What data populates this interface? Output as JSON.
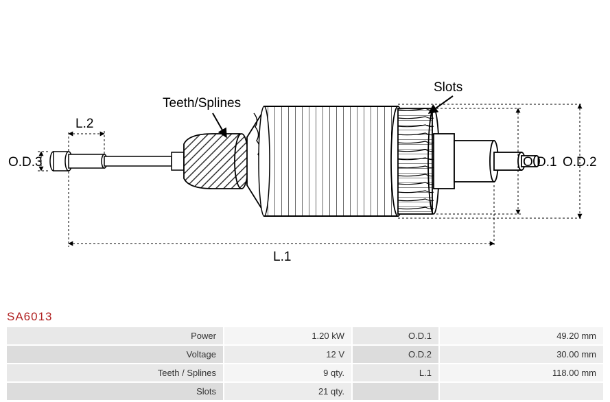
{
  "part_number": "SA6013",
  "part_number_color": "#b02020",
  "diagram": {
    "labels": {
      "slots": "Slots",
      "teeth": "Teeth/Splines",
      "L2": "L.2",
      "OD3": "O.D.3",
      "OD1": "O.D.1",
      "OD2": "O.D.2",
      "L1": "L.1"
    },
    "stroke_color": "#000000",
    "fill_color": "#ffffff",
    "hatch_color": "#333333",
    "dimension_dash": "3,3"
  },
  "specs": {
    "rows": [
      {
        "label1": "Power",
        "value1": "1.20 kW",
        "label2": "O.D.1",
        "value2": "49.20 mm"
      },
      {
        "label1": "Voltage",
        "value1": "12 V",
        "label2": "O.D.2",
        "value2": "30.00 mm"
      },
      {
        "label1": "Teeth / Splines",
        "value1": "9 qty.",
        "label2": "L.1",
        "value2": "118.00 mm"
      },
      {
        "label1": "Slots",
        "value1": "21 qty.",
        "label2": "",
        "value2": ""
      }
    ],
    "odd_label_bg": "#e8e8e8",
    "odd_value_bg": "#f5f5f5",
    "even_label_bg": "#dcdcdc",
    "even_value_bg": "#ececec",
    "text_color": "#333333",
    "font_size": 13
  }
}
